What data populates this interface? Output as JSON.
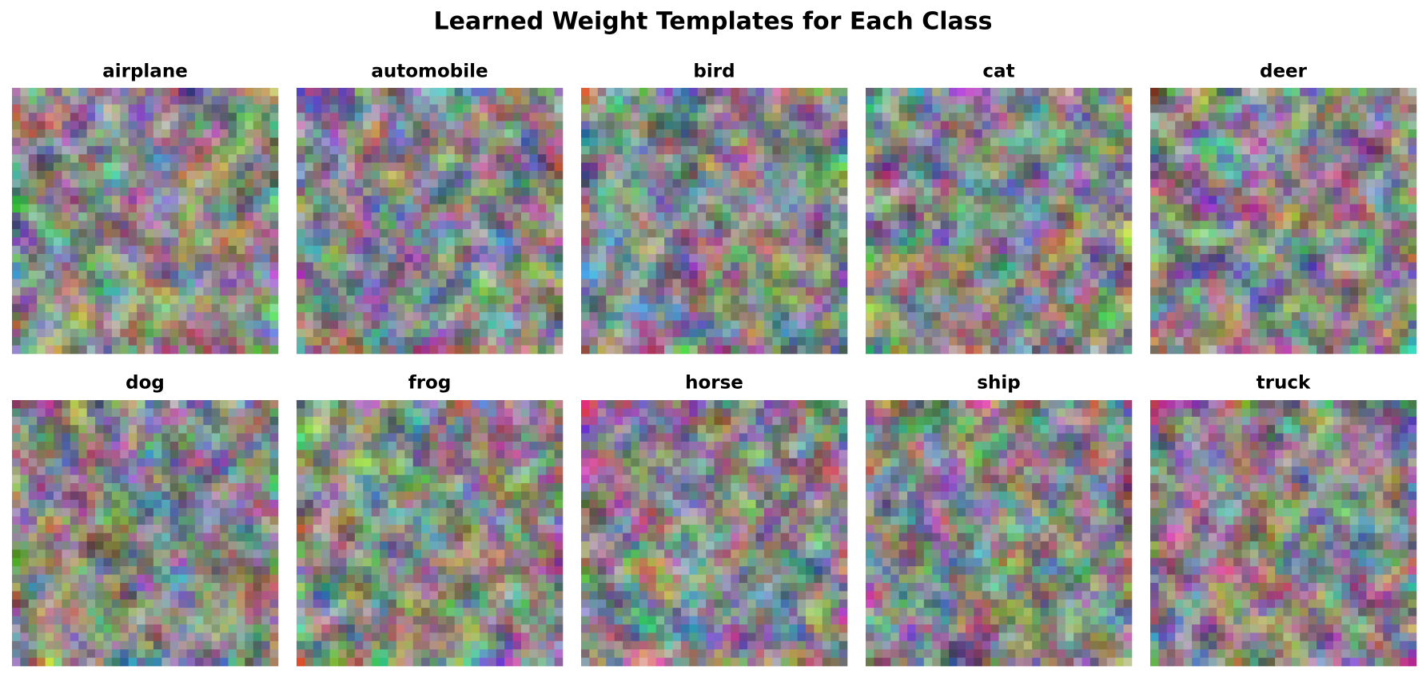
{
  "title": "Learned Weight Templates for Each Class",
  "panels": [
    {
      "label": "airplane"
    },
    {
      "label": "automobile"
    },
    {
      "label": "bird"
    },
    {
      "label": "cat"
    },
    {
      "label": "deer"
    },
    {
      "label": "dog"
    },
    {
      "label": "frog"
    },
    {
      "label": "horse"
    },
    {
      "label": "ship"
    },
    {
      "label": "truck"
    }
  ]
}
